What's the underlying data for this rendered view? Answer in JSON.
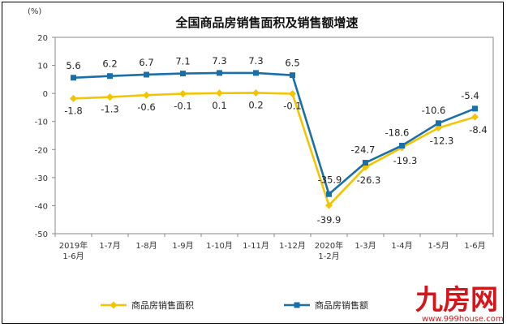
{
  "chart_data": {
    "type": "line",
    "title": "全国商品房销售面积及销售额增速",
    "ylabel": "(%)",
    "ylim": [
      -50,
      20
    ],
    "yticks": [
      -50,
      -40,
      -30,
      -20,
      -10,
      0,
      10,
      20
    ],
    "categories": [
      "2019年\n1-6月",
      "1-7月",
      "1-8月",
      "1-9月",
      "1-10月",
      "1-11月",
      "1-12月",
      "2020年\n1-2月",
      "1-3月",
      "1-4月",
      "1-5月",
      "1-6月"
    ],
    "series": [
      {
        "name": "商品房销售面积",
        "color": "#f5c400",
        "marker": "diamond",
        "values": [
          -1.8,
          -1.3,
          -0.6,
          -0.1,
          0.1,
          0.2,
          -0.1,
          -39.9,
          -26.3,
          -19.3,
          -12.3,
          -8.4
        ],
        "labels": [
          "-1.8",
          "-1.3",
          "-0.6",
          "-0.1",
          "0.1",
          "0.2",
          "-0.1",
          "-39.9",
          "-26.3",
          "-19.3",
          "-12.3",
          "-8.4"
        ]
      },
      {
        "name": "商品房销售额",
        "color": "#1a6fa8",
        "marker": "square",
        "values": [
          5.6,
          6.2,
          6.7,
          7.1,
          7.3,
          7.3,
          6.5,
          -35.9,
          -24.7,
          -18.6,
          -10.6,
          -5.4
        ],
        "labels": [
          "5.6",
          "6.2",
          "6.7",
          "7.1",
          "7.3",
          "7.3",
          "6.5",
          "-35.9",
          "-24.7",
          "-18.6",
          "-10.6",
          "-5.4"
        ]
      }
    ],
    "legend_position": "bottom"
  },
  "watermark": {
    "brand": "九房网",
    "url": "www.999house.com"
  }
}
